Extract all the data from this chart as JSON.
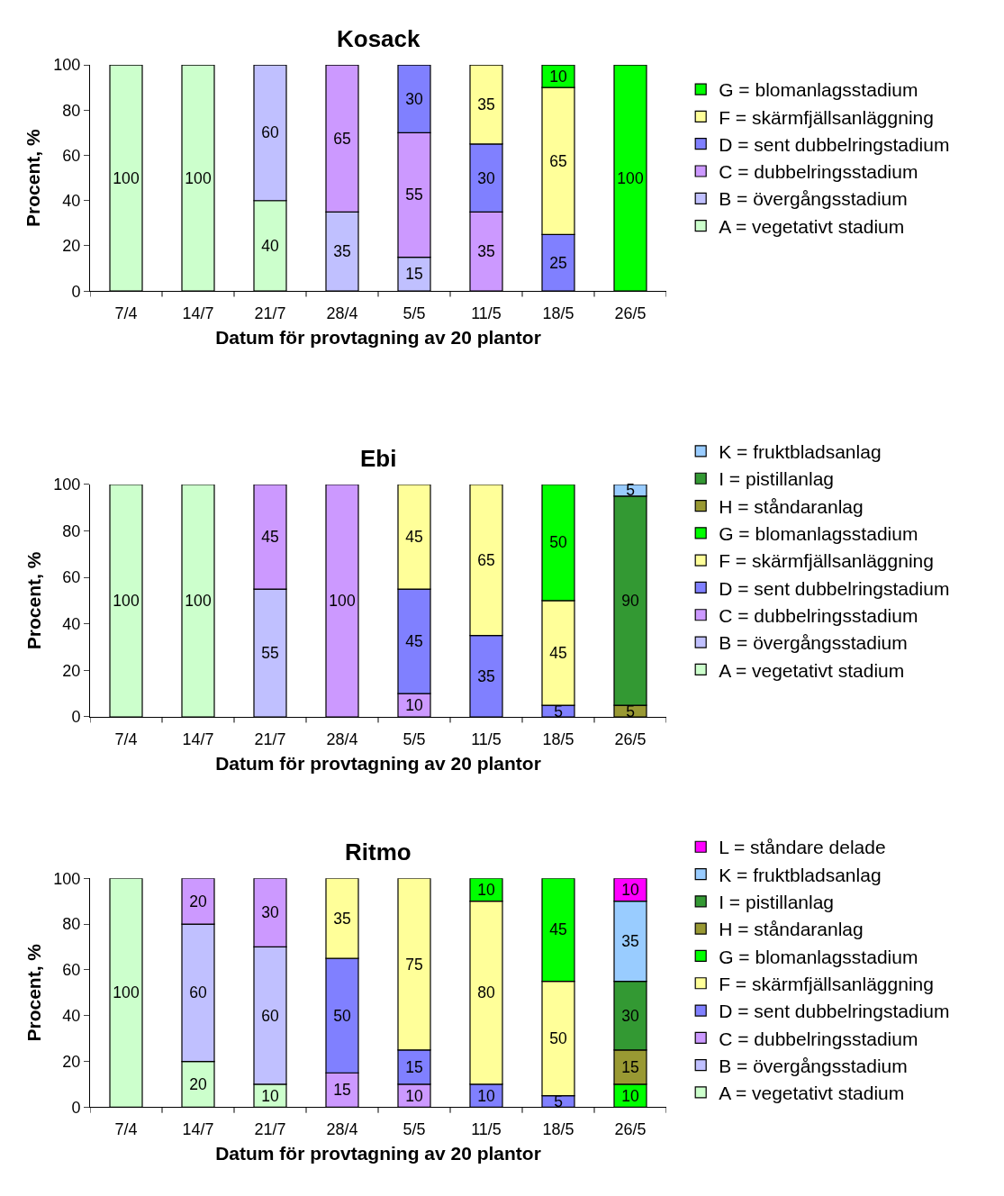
{
  "chart_data": [
    {
      "type": "bar",
      "title": "Kosack",
      "xlabel": "Datum för provtagning av 20 plantor",
      "ylabel": "Procent, %",
      "stacked": true,
      "data_labels": true,
      "legend": "right",
      "ylim": [
        0,
        100
      ],
      "yticks": [
        0,
        20,
        40,
        60,
        80,
        100
      ],
      "categories": [
        "7/4",
        "14/7",
        "21/7",
        "28/4",
        "5/5",
        "11/5",
        "18/5",
        "26/5"
      ],
      "series": [
        {
          "name": "A = vegetativt stadium",
          "color": "#ccffcc",
          "values": [
            100,
            100,
            40,
            null,
            null,
            null,
            null,
            null
          ]
        },
        {
          "name": "B = övergångsstadium",
          "color": "#c0c0ff",
          "values": [
            null,
            null,
            60,
            35,
            15,
            null,
            null,
            null
          ]
        },
        {
          "name": "C = dubbelringsstadium",
          "color": "#cc99ff",
          "values": [
            null,
            null,
            null,
            65,
            55,
            35,
            null,
            null
          ]
        },
        {
          "name": "D = sent dubbelringstadium",
          "color": "#8080ff",
          "values": [
            null,
            null,
            null,
            null,
            30,
            30,
            25,
            null
          ]
        },
        {
          "name": "F = skärmfjällsanläggning",
          "color": "#ffff99",
          "values": [
            null,
            null,
            null,
            null,
            null,
            35,
            65,
            null
          ]
        },
        {
          "name": "G = blomanlagsstadium",
          "color": "#00ff00",
          "values": [
            null,
            null,
            null,
            null,
            null,
            null,
            10,
            100
          ]
        }
      ]
    },
    {
      "type": "bar",
      "title": "Ebi",
      "xlabel": "Datum för provtagning av 20 plantor",
      "ylabel": "Procent, %",
      "stacked": true,
      "data_labels": true,
      "legend": "right",
      "ylim": [
        0,
        100
      ],
      "yticks": [
        0,
        20,
        40,
        60,
        80,
        100
      ],
      "categories": [
        "7/4",
        "14/7",
        "21/7",
        "28/4",
        "5/5",
        "11/5",
        "18/5",
        "26/5"
      ],
      "series": [
        {
          "name": "A = vegetativt stadium",
          "color": "#ccffcc",
          "values": [
            100,
            100,
            null,
            null,
            null,
            null,
            null,
            null
          ]
        },
        {
          "name": "B = övergångsstadium",
          "color": "#c0c0ff",
          "values": [
            null,
            null,
            55,
            null,
            null,
            null,
            null,
            null
          ]
        },
        {
          "name": "C = dubbelringsstadium",
          "color": "#cc99ff",
          "values": [
            null,
            null,
            45,
            100,
            10,
            null,
            null,
            null
          ]
        },
        {
          "name": "D = sent dubbelringstadium",
          "color": "#8080ff",
          "values": [
            null,
            null,
            null,
            null,
            45,
            35,
            5,
            null
          ]
        },
        {
          "name": "F = skärmfjällsanläggning",
          "color": "#ffff99",
          "values": [
            null,
            null,
            null,
            null,
            45,
            65,
            45,
            null
          ]
        },
        {
          "name": "G = blomanlagsstadium",
          "color": "#00ff00",
          "values": [
            null,
            null,
            null,
            null,
            null,
            null,
            50,
            null
          ]
        },
        {
          "name": "H = ståndaranlag",
          "color": "#999933",
          "values": [
            null,
            null,
            null,
            null,
            null,
            null,
            null,
            5
          ]
        },
        {
          "name": "I = pistillanlag",
          "color": "#339933",
          "values": [
            null,
            null,
            null,
            null,
            null,
            null,
            null,
            90
          ]
        },
        {
          "name": "K = fruktbladsanlag",
          "color": "#99ccff",
          "values": [
            null,
            null,
            null,
            null,
            null,
            null,
            null,
            5
          ]
        }
      ]
    },
    {
      "type": "bar",
      "title": "Ritmo",
      "xlabel": "Datum för provtagning av 20 plantor",
      "ylabel": "Procent, %",
      "stacked": true,
      "data_labels": true,
      "legend": "right",
      "ylim": [
        0,
        100
      ],
      "yticks": [
        0,
        20,
        40,
        60,
        80,
        100
      ],
      "categories": [
        "7/4",
        "14/7",
        "21/7",
        "28/4",
        "5/5",
        "11/5",
        "18/5",
        "26/5"
      ],
      "series": [
        {
          "name": "A = vegetativt stadium",
          "color": "#ccffcc",
          "values": [
            100,
            20,
            10,
            null,
            null,
            null,
            null,
            null
          ]
        },
        {
          "name": "B = övergångsstadium",
          "color": "#c0c0ff",
          "values": [
            null,
            60,
            60,
            null,
            null,
            null,
            null,
            null
          ]
        },
        {
          "name": "C = dubbelringsstadium",
          "color": "#cc99ff",
          "values": [
            null,
            20,
            30,
            15,
            10,
            null,
            null,
            null
          ]
        },
        {
          "name": "D = sent dubbelringstadium",
          "color": "#8080ff",
          "values": [
            null,
            null,
            null,
            50,
            15,
            10,
            5,
            null
          ]
        },
        {
          "name": "F = skärmfjällsanläggning",
          "color": "#ffff99",
          "values": [
            null,
            null,
            null,
            35,
            75,
            80,
            50,
            null
          ]
        },
        {
          "name": "G = blomanlagsstadium",
          "color": "#00ff00",
          "values": [
            null,
            null,
            null,
            null,
            null,
            10,
            45,
            10
          ]
        },
        {
          "name": "H = ståndaranlag",
          "color": "#999933",
          "values": [
            null,
            null,
            null,
            null,
            null,
            null,
            null,
            15
          ]
        },
        {
          "name": "I = pistillanlag",
          "color": "#339933",
          "values": [
            null,
            null,
            null,
            null,
            null,
            null,
            null,
            30
          ]
        },
        {
          "name": "K = fruktbladsanlag",
          "color": "#99ccff",
          "values": [
            null,
            null,
            null,
            null,
            null,
            null,
            null,
            35
          ]
        },
        {
          "name": "L = ståndare delade",
          "color": "#ff00ff",
          "values": [
            null,
            null,
            null,
            null,
            null,
            null,
            null,
            10
          ]
        }
      ]
    }
  ]
}
